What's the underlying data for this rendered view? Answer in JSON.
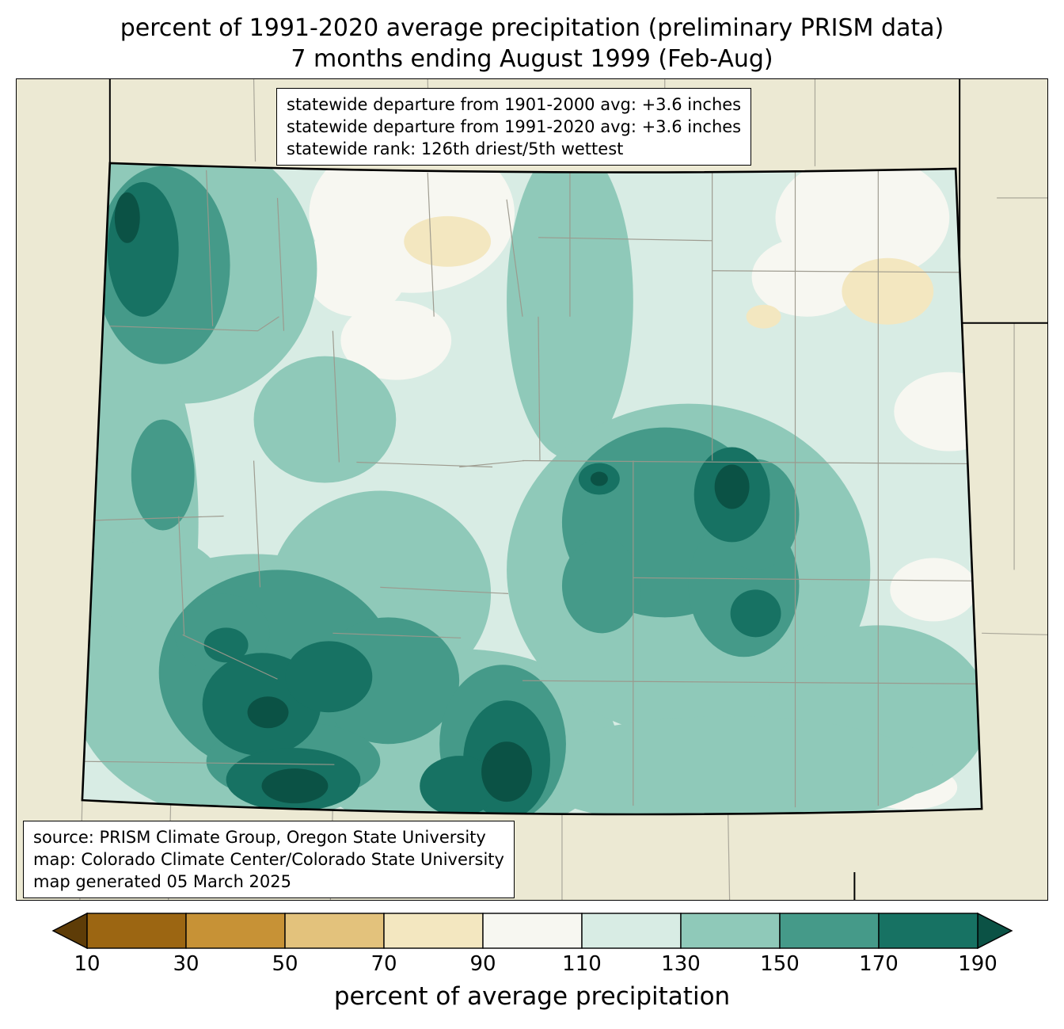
{
  "title": {
    "line1": "percent of 1991-2020 average precipitation (preliminary PRISM data)",
    "line2": "7 months ending August 1999 (Feb-Aug)"
  },
  "stats_box": {
    "lines": [
      "statewide departure from 1901-2000 avg: +3.6 inches",
      "statewide departure from 1991-2020 avg: +3.6 inches",
      "statewide rank: 126th driest/5th wettest"
    ]
  },
  "source_box": {
    "lines": [
      "source: PRISM Climate Group, Oregon State University",
      "map: Colorado Climate Center/Colorado State University",
      "map generated 05 March 2025"
    ]
  },
  "map": {
    "region": "Colorado",
    "background_color": "#ece9d3",
    "state_border_color": "#000000",
    "county_line_color": "#9b988c"
  },
  "colorbar": {
    "label": "percent of average precipitation",
    "ticks": [
      "10",
      "30",
      "50",
      "70",
      "90",
      "110",
      "130",
      "150",
      "170",
      "190"
    ],
    "segment_colors": [
      "#9c6612",
      "#c79236",
      "#e3c27c",
      "#f3e7c0",
      "#f7f7f1",
      "#d8ece4",
      "#8fc9b9",
      "#459a89",
      "#177263"
    ],
    "left_arrow_color": "#5e3c07",
    "right_arrow_color": "#0b5245",
    "outline_color": "#000000"
  },
  "chart_data": {
    "type": "heatmap",
    "title": "percent of 1991-2020 average precipitation (preliminary PRISM data), 7 months ending August 1999 (Feb-Aug)",
    "region": "Colorado",
    "units": "percent of average precipitation",
    "scale_ticks": [
      10,
      30,
      50,
      70,
      90,
      110,
      130,
      150,
      170,
      190
    ],
    "scale_extends_below": true,
    "scale_extends_above": true,
    "statewide_departure_1901_2000_avg_inches": 3.6,
    "statewide_departure_1991_2020_avg_inches": 3.6,
    "statewide_rank": "126th driest/5th wettest"
  }
}
